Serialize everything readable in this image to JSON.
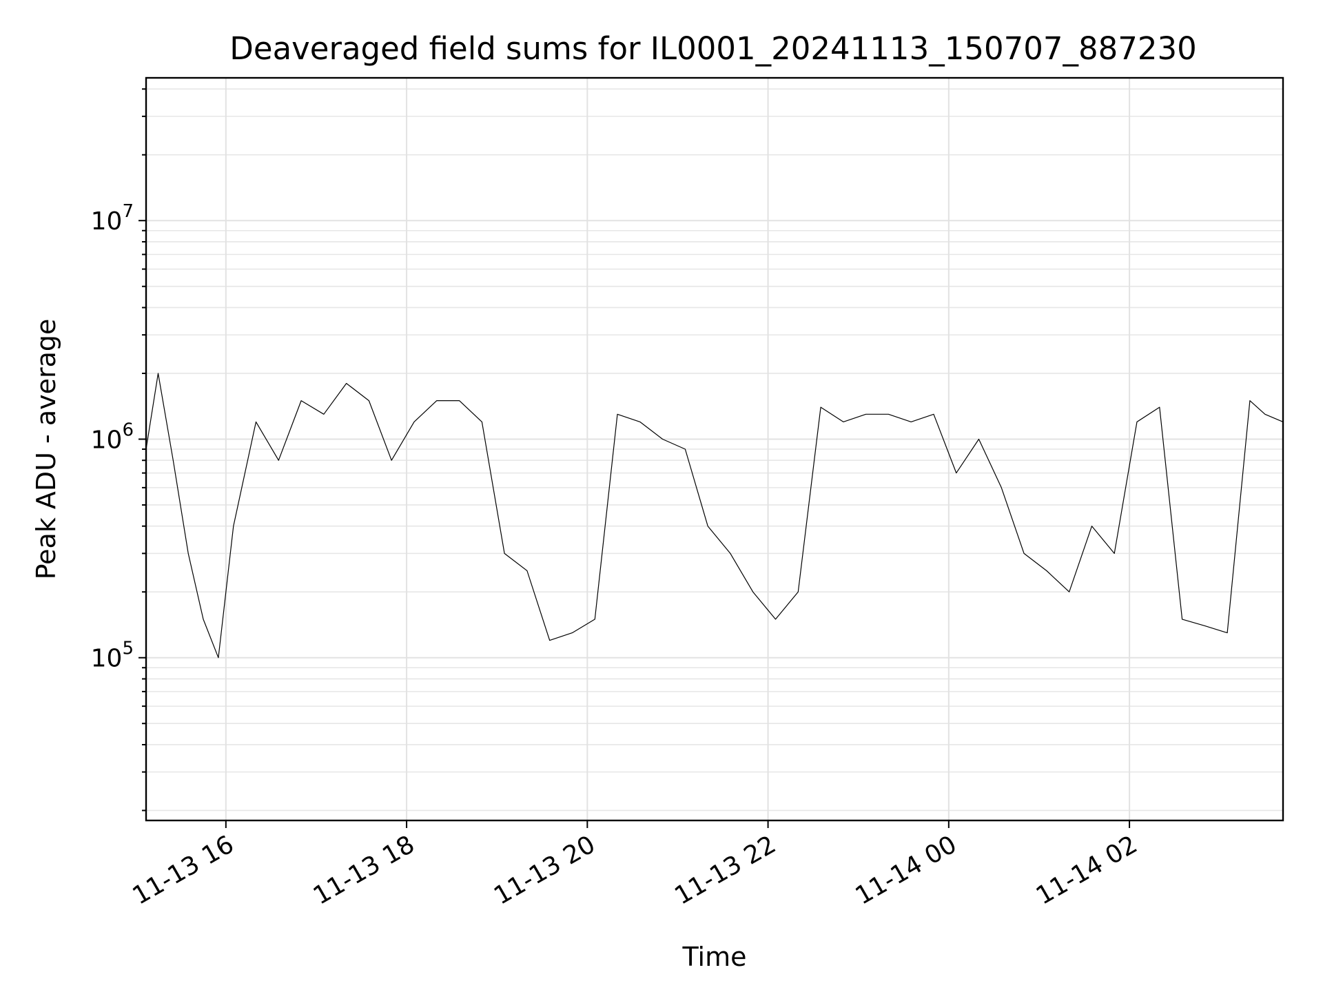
{
  "chart_data": {
    "type": "line",
    "title": "Deaveraged field sums for IL0001_20241113_150707_887230",
    "xlabel": "Time",
    "ylabel": "Peak ADU - average",
    "yscale": "log",
    "xlim": [
      "2024-11-13 15:07",
      "2024-11-14 03:42"
    ],
    "ylim": [
      18000,
      45000000
    ],
    "grid": true,
    "legend": "none",
    "line_color": "#000000",
    "x_ticks": [
      {
        "value": "2024-11-13 16:00",
        "label": "11-13 16"
      },
      {
        "value": "2024-11-13 18:00",
        "label": "11-13 18"
      },
      {
        "value": "2024-11-13 20:00",
        "label": "11-13 20"
      },
      {
        "value": "2024-11-13 22:00",
        "label": "11-13 22"
      },
      {
        "value": "2024-11-14 00:00",
        "label": "11-14 00"
      },
      {
        "value": "2024-11-14 02:00",
        "label": "11-14 02"
      }
    ],
    "y_ticks": [
      {
        "value": 100000,
        "base": "10",
        "exp": "5"
      },
      {
        "value": 1000000,
        "base": "10",
        "exp": "6"
      },
      {
        "value": 10000000,
        "base": "10",
        "exp": "7"
      }
    ],
    "series": [
      {
        "x": [
          "2024-11-13 15:07",
          "2024-11-13 15:15",
          "2024-11-13 15:25",
          "2024-11-13 15:35",
          "2024-11-13 15:45",
          "2024-11-13 15:55",
          "2024-11-13 16:05",
          "2024-11-13 16:20",
          "2024-11-13 16:35",
          "2024-11-13 16:50",
          "2024-11-13 17:05",
          "2024-11-13 17:20",
          "2024-11-13 17:35",
          "2024-11-13 17:50",
          "2024-11-13 18:05",
          "2024-11-13 18:20",
          "2024-11-13 18:35",
          "2024-11-13 18:50",
          "2024-11-13 19:05",
          "2024-11-13 19:20",
          "2024-11-13 19:35",
          "2024-11-13 19:50",
          "2024-11-13 20:05",
          "2024-11-13 20:20",
          "2024-11-13 20:35",
          "2024-11-13 20:50",
          "2024-11-13 21:05",
          "2024-11-13 21:20",
          "2024-11-13 21:35",
          "2024-11-13 21:50",
          "2024-11-13 22:05",
          "2024-11-13 22:20",
          "2024-11-13 22:35",
          "2024-11-13 22:50",
          "2024-11-13 23:05",
          "2024-11-13 23:20",
          "2024-11-13 23:35",
          "2024-11-13 23:50",
          "2024-11-14 00:05",
          "2024-11-14 00:20",
          "2024-11-14 00:35",
          "2024-11-14 00:50",
          "2024-11-14 01:05",
          "2024-11-14 01:20",
          "2024-11-14 01:35",
          "2024-11-14 01:50",
          "2024-11-14 02:05",
          "2024-11-14 02:20",
          "2024-11-14 02:35",
          "2024-11-14 02:50",
          "2024-11-14 03:05",
          "2024-11-14 03:20",
          "2024-11-14 03:30",
          "2024-11-14 03:42"
        ],
        "y": [
          900000,
          2000000,
          800000,
          300000,
          150000,
          100000,
          400000,
          1200000,
          800000,
          1500000,
          1300000,
          1800000,
          1500000,
          800000,
          1200000,
          1500000,
          1500000,
          1200000,
          300000,
          250000,
          120000,
          130000,
          150000,
          1300000,
          1200000,
          1000000,
          900000,
          400000,
          300000,
          200000,
          150000,
          200000,
          1400000,
          1200000,
          1300000,
          1300000,
          1200000,
          1300000,
          700000,
          1000000,
          600000,
          300000,
          250000,
          200000,
          400000,
          300000,
          1200000,
          1400000,
          150000,
          140000,
          130000,
          1500000,
          1300000,
          1200000
        ]
      }
    ]
  }
}
